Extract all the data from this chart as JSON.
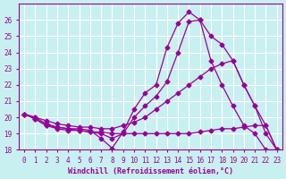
{
  "xlabel": "Windchill (Refroidissement éolien,°C)",
  "background_color": "#c8f0f0",
  "line_color": "#990099",
  "grid_color": "#aadddd",
  "xlim": [
    -0.5,
    23.5
  ],
  "ylim": [
    18,
    27
  ],
  "yticks": [
    18,
    19,
    20,
    21,
    22,
    23,
    24,
    25,
    26
  ],
  "xticks": [
    0,
    1,
    2,
    3,
    4,
    5,
    6,
    7,
    8,
    9,
    10,
    11,
    12,
    13,
    14,
    15,
    16,
    17,
    18,
    19,
    20,
    21,
    22,
    23
  ],
  "series": [
    {
      "x": [
        0,
        1,
        2,
        3,
        4,
        5,
        6,
        7,
        8,
        9,
        10,
        11,
        12,
        13,
        14,
        15,
        16,
        17,
        18,
        19,
        20,
        21,
        22,
        23
      ],
      "y": [
        20.2,
        19.9,
        19.5,
        19.4,
        19.3,
        19.3,
        19.2,
        18.7,
        18.1,
        19.1,
        20.5,
        21.5,
        22.0,
        24.3,
        25.8,
        26.5,
        26.0,
        23.5,
        22.0,
        20.7,
        19.5,
        19.0,
        18.0,
        18.0
      ]
    },
    {
      "x": [
        0,
        1,
        2,
        3,
        4,
        5,
        6,
        7,
        8,
        9,
        10,
        11,
        12,
        13,
        14,
        15,
        16,
        17,
        18,
        19,
        20,
        21,
        22,
        23
      ],
      "y": [
        20.2,
        19.9,
        19.5,
        19.3,
        19.2,
        19.2,
        19.1,
        19.0,
        18.7,
        19.0,
        20.0,
        20.7,
        21.3,
        22.2,
        24.0,
        25.9,
        26.0,
        25.0,
        24.5,
        23.5,
        22.0,
        20.7,
        19.5,
        18.0
      ]
    },
    {
      "x": [
        0,
        1,
        2,
        3,
        4,
        5,
        6,
        7,
        8,
        9,
        10,
        11,
        12,
        13,
        14,
        15,
        16,
        17,
        18,
        19,
        20,
        21,
        22,
        23
      ],
      "y": [
        20.2,
        20.0,
        19.8,
        19.6,
        19.5,
        19.4,
        19.4,
        19.3,
        19.3,
        19.5,
        19.7,
        20.0,
        20.5,
        21.0,
        21.5,
        22.0,
        22.5,
        23.0,
        23.3,
        23.5,
        22.0,
        20.7,
        19.0,
        18.0
      ]
    },
    {
      "x": [
        0,
        1,
        2,
        3,
        4,
        5,
        6,
        7,
        8,
        9,
        10,
        11,
        12,
        13,
        14,
        15,
        16,
        17,
        18,
        19,
        20,
        21,
        22,
        23
      ],
      "y": [
        20.2,
        20.0,
        19.6,
        19.4,
        19.3,
        19.2,
        19.1,
        19.1,
        19.0,
        19.0,
        19.0,
        19.0,
        19.0,
        19.0,
        19.0,
        19.0,
        19.1,
        19.2,
        19.3,
        19.3,
        19.4,
        19.5,
        19.5,
        18.0
      ]
    }
  ]
}
